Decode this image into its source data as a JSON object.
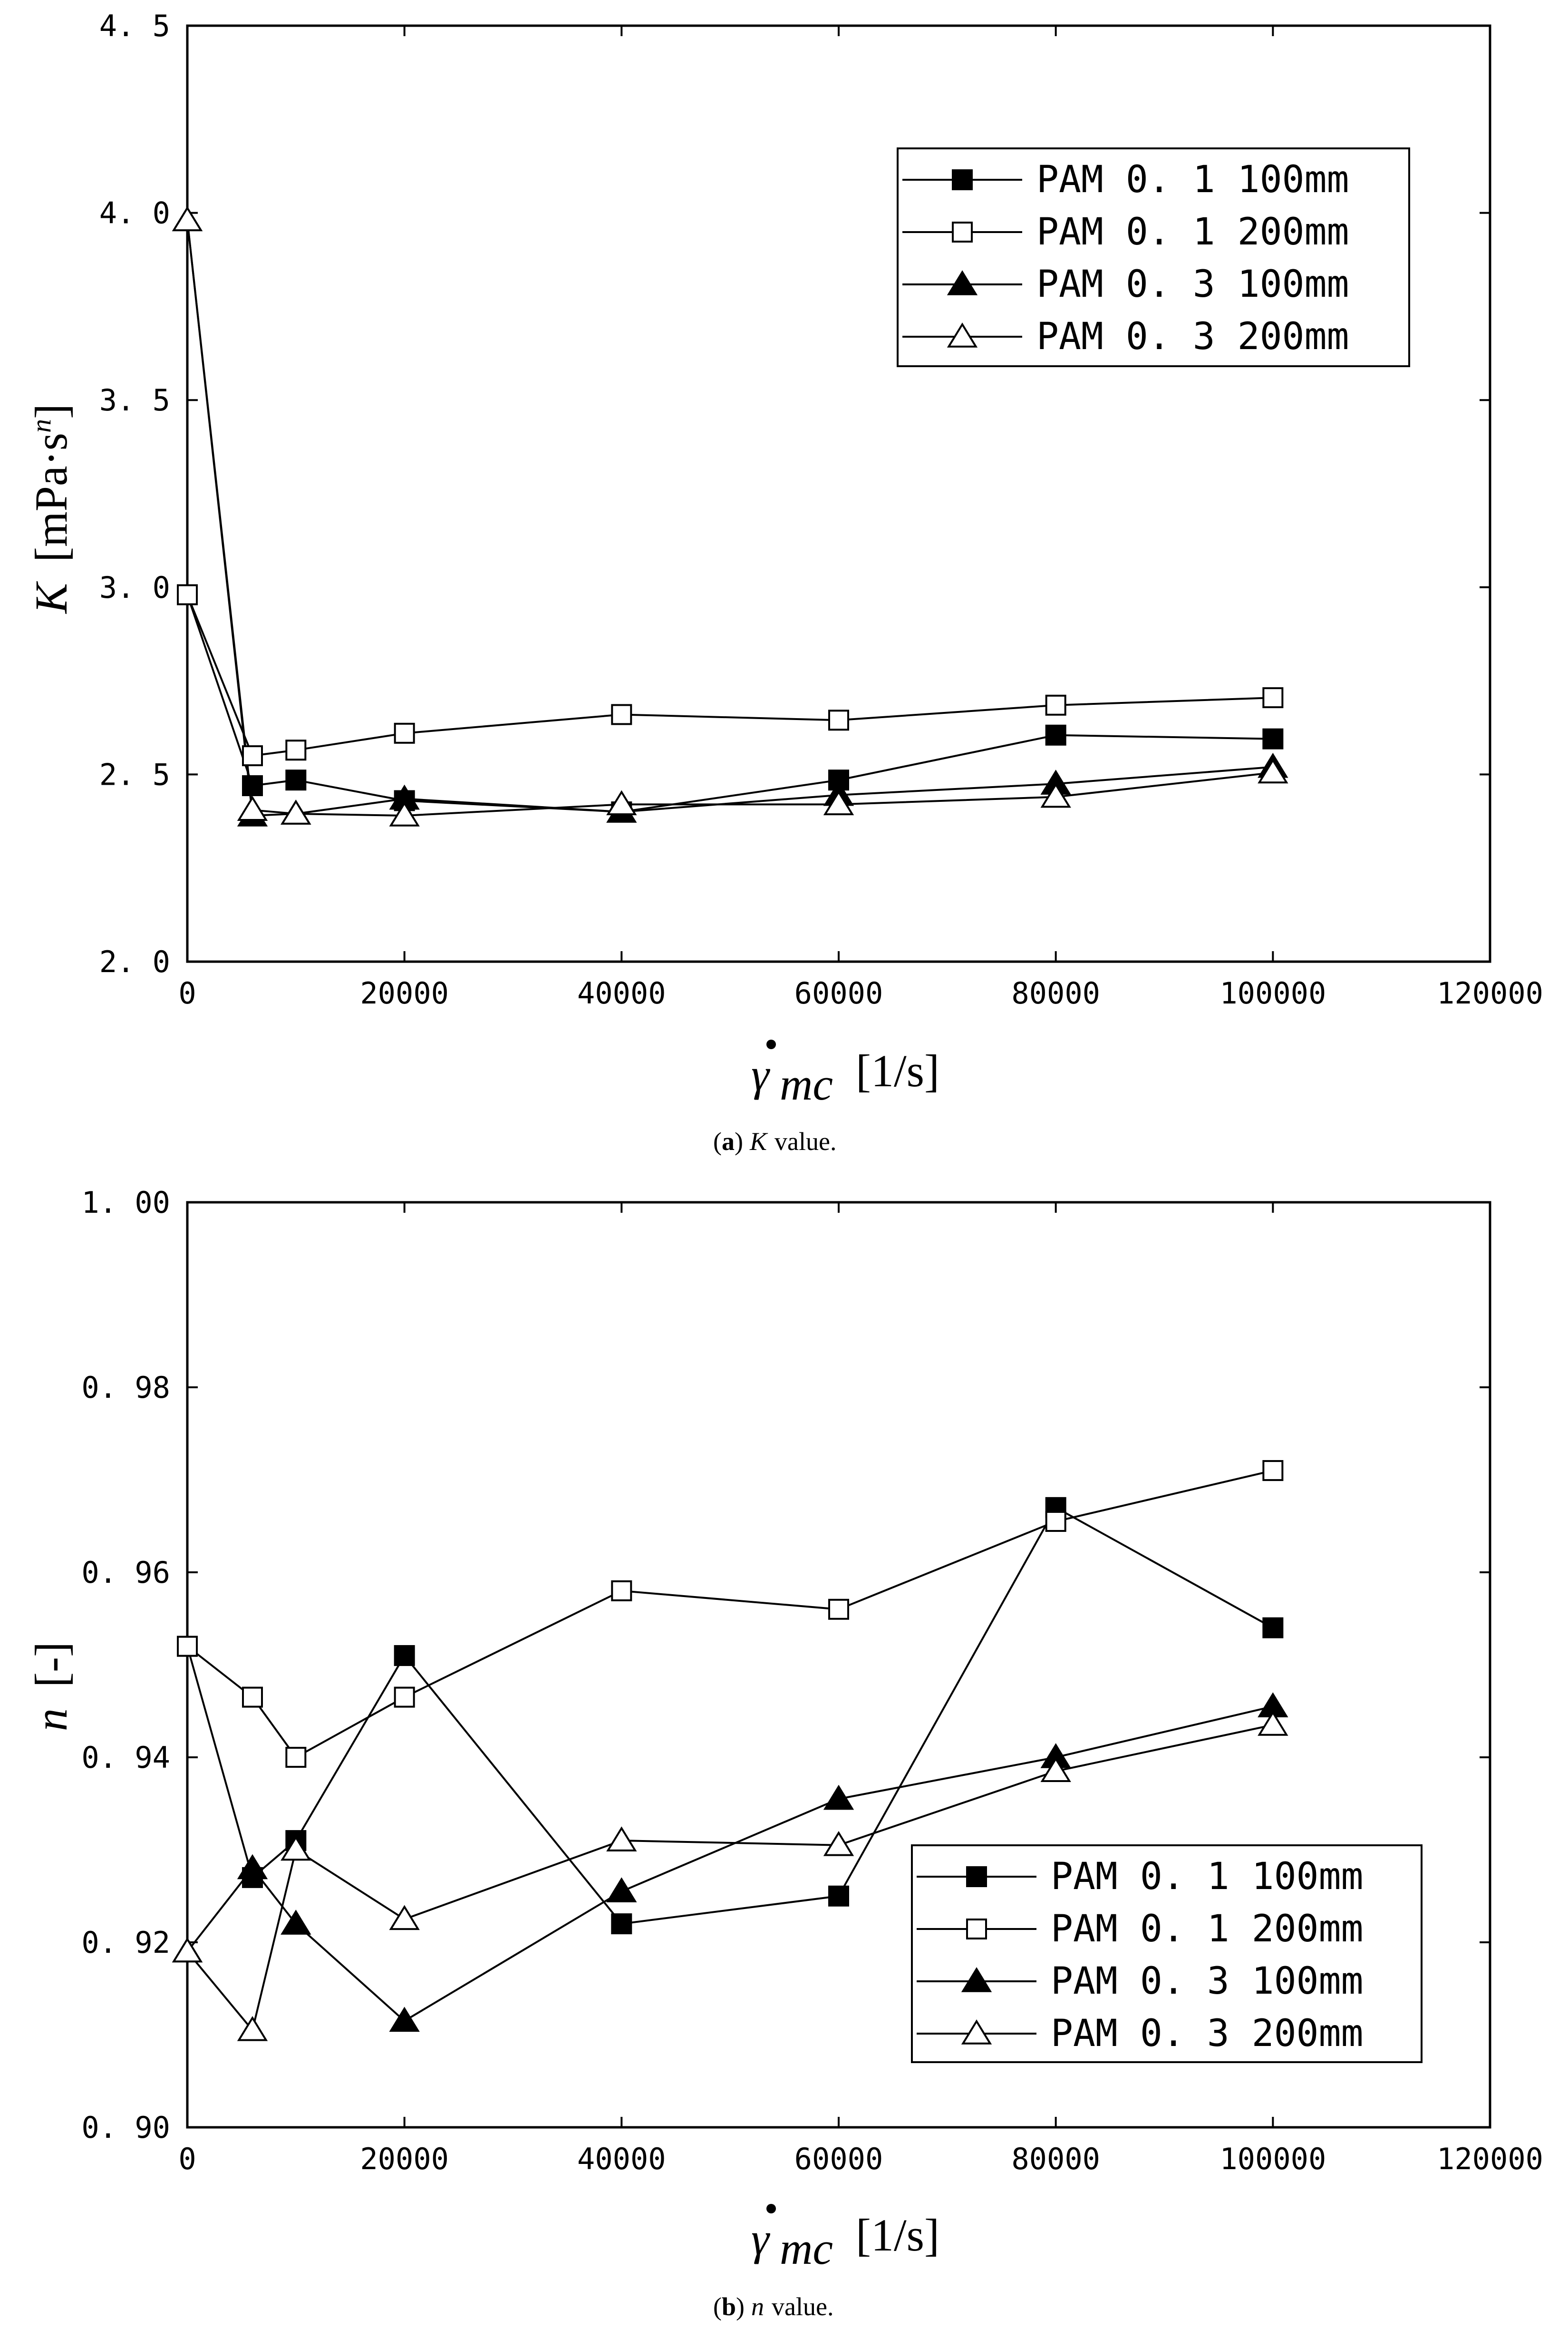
{
  "figure": {
    "caption_a": {
      "label": "a",
      "symbol": "K",
      "text": "value."
    },
    "caption_b": {
      "label": "b",
      "symbol": "n",
      "text": "value."
    }
  },
  "chart_data": [
    {
      "type": "line",
      "panel": "a",
      "xlabel_unit": "[1/s]",
      "ylabel_symbol": "K",
      "ylabel_unit": "[mPa·s",
      "ylabel_exp": "n",
      "ylabel_close": "]",
      "xlim": [
        0,
        120000
      ],
      "ylim": [
        2.0,
        4.5
      ],
      "xticks": [
        0,
        20000,
        40000,
        60000,
        80000,
        100000,
        120000
      ],
      "xtick_labels": [
        "0",
        "20000",
        "40000",
        "60000",
        "80000",
        "100000",
        "120000"
      ],
      "yticks": [
        2.0,
        2.5,
        3.0,
        3.5,
        4.0,
        4.5
      ],
      "ytick_labels": [
        "2. 0",
        "2. 5",
        "3. 0",
        "3. 5",
        "4. 0",
        "4. 5"
      ],
      "legend_position": "top-right",
      "series": [
        {
          "name": "PAM 0. 1  100mm",
          "marker": "square-filled",
          "x": [
            0,
            6000,
            10000,
            20000,
            40000,
            60000,
            80000,
            100000
          ],
          "y": [
            2.98,
            2.47,
            2.485,
            2.43,
            2.4,
            2.485,
            2.605,
            2.595
          ]
        },
        {
          "name": "PAM 0. 1  200mm",
          "marker": "square-open",
          "x": [
            0,
            6000,
            10000,
            20000,
            40000,
            60000,
            80000,
            100000
          ],
          "y": [
            2.98,
            2.55,
            2.565,
            2.61,
            2.66,
            2.645,
            2.685,
            2.705
          ]
        },
        {
          "name": "PAM 0. 3  100mm",
          "marker": "triangle-filled",
          "x": [
            0,
            6000,
            10000,
            20000,
            40000,
            60000,
            80000,
            100000
          ],
          "y": [
            3.98,
            2.39,
            2.395,
            2.435,
            2.4,
            2.445,
            2.475,
            2.52
          ]
        },
        {
          "name": "PAM 0. 3  200mm",
          "marker": "triangle-open",
          "x": [
            0,
            6000,
            10000,
            20000,
            40000,
            60000,
            80000,
            100000
          ],
          "y": [
            3.98,
            2.405,
            2.395,
            2.39,
            2.42,
            2.42,
            2.44,
            2.505
          ]
        }
      ]
    },
    {
      "type": "line",
      "panel": "b",
      "xlabel_unit": "[1/s]",
      "ylabel_symbol": "n",
      "ylabel_unit": "[-]",
      "xlim": [
        0,
        120000
      ],
      "ylim": [
        0.9,
        1.0
      ],
      "xticks": [
        0,
        20000,
        40000,
        60000,
        80000,
        100000,
        120000
      ],
      "xtick_labels": [
        "0",
        "20000",
        "40000",
        "60000",
        "80000",
        "100000",
        "120000"
      ],
      "yticks": [
        0.9,
        0.92,
        0.94,
        0.96,
        0.98,
        1.0
      ],
      "ytick_labels": [
        "0. 90",
        "0. 92",
        "0. 94",
        "0. 96",
        "0. 98",
        "1. 00"
      ],
      "legend_position": "bottom-right",
      "series": [
        {
          "name": "PAM 0. 1  100mm",
          "marker": "square-filled",
          "x": [
            0,
            6000,
            10000,
            20000,
            40000,
            60000,
            80000,
            100000
          ],
          "y": [
            0.952,
            0.927,
            0.931,
            0.951,
            0.922,
            0.925,
            0.967,
            0.954
          ]
        },
        {
          "name": "PAM 0. 1  200mm",
          "marker": "square-open",
          "x": [
            0,
            6000,
            10000,
            20000,
            40000,
            60000,
            80000,
            100000
          ],
          "y": [
            0.952,
            0.9465,
            0.94,
            0.9465,
            0.958,
            0.956,
            0.9655,
            0.971
          ]
        },
        {
          "name": "PAM 0. 3  100mm",
          "marker": "triangle-filled",
          "x": [
            0,
            6000,
            10000,
            20000,
            40000,
            60000,
            80000,
            100000
          ],
          "y": [
            0.919,
            0.928,
            0.922,
            0.9115,
            0.9255,
            0.9355,
            0.94,
            0.9455
          ]
        },
        {
          "name": "PAM 0. 3  200mm",
          "marker": "triangle-open",
          "x": [
            0,
            6000,
            10000,
            20000,
            40000,
            60000,
            80000,
            100000
          ],
          "y": [
            0.919,
            0.9105,
            0.93,
            0.9225,
            0.931,
            0.9305,
            0.9385,
            0.9435
          ]
        }
      ]
    }
  ]
}
